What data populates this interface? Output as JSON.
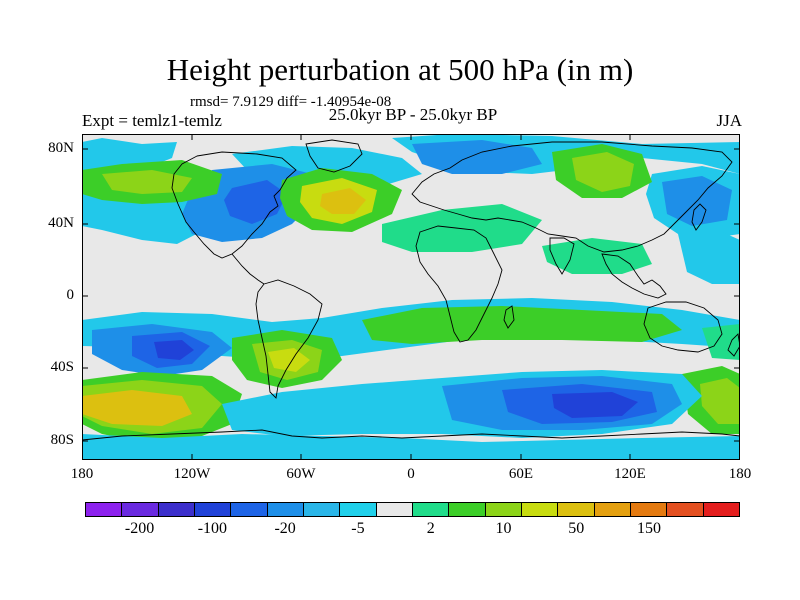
{
  "title": "Height perturbation at 500 hPa (in m)",
  "stats_text": "rmsd= 7.9129 diff= -1.40954e-08",
  "left_label": "Expt = temlz1-temlz",
  "center_label": "25.0kyr BP - 25.0kyr BP",
  "right_label": "JJA",
  "y_ticks": [
    "80N",
    "40N",
    "0",
    "40S",
    "80S"
  ],
  "x_ticks": [
    "180",
    "120W",
    "60W",
    "0",
    "60E",
    "120E",
    "180"
  ],
  "colorbar": {
    "colors": [
      "#8d22ee",
      "#6a2ae0",
      "#3c2fcc",
      "#2042d8",
      "#1e64e6",
      "#1e8fe8",
      "#2ab6e8",
      "#20d0ea",
      "#e8e8e8",
      "#20dc8a",
      "#3cce28",
      "#8cd418",
      "#c8dc10",
      "#dcc010",
      "#e4a010",
      "#e47a10",
      "#e45020",
      "#e41e1e"
    ],
    "labels": [
      "-200",
      "-100",
      "-20",
      "-5",
      "2",
      "10",
      "50",
      "150"
    ]
  },
  "colors": {
    "neutral": "#e8e8e8",
    "cyan": "#22c8ea",
    "lightblue": "#1e8fe8",
    "blue": "#1e64e6",
    "darkblue": "#2042d8",
    "teal": "#20dc8a",
    "green": "#3cce28",
    "yellowgreen": "#8cd418",
    "yellow": "#c8dc10",
    "orange": "#dcc010"
  }
}
